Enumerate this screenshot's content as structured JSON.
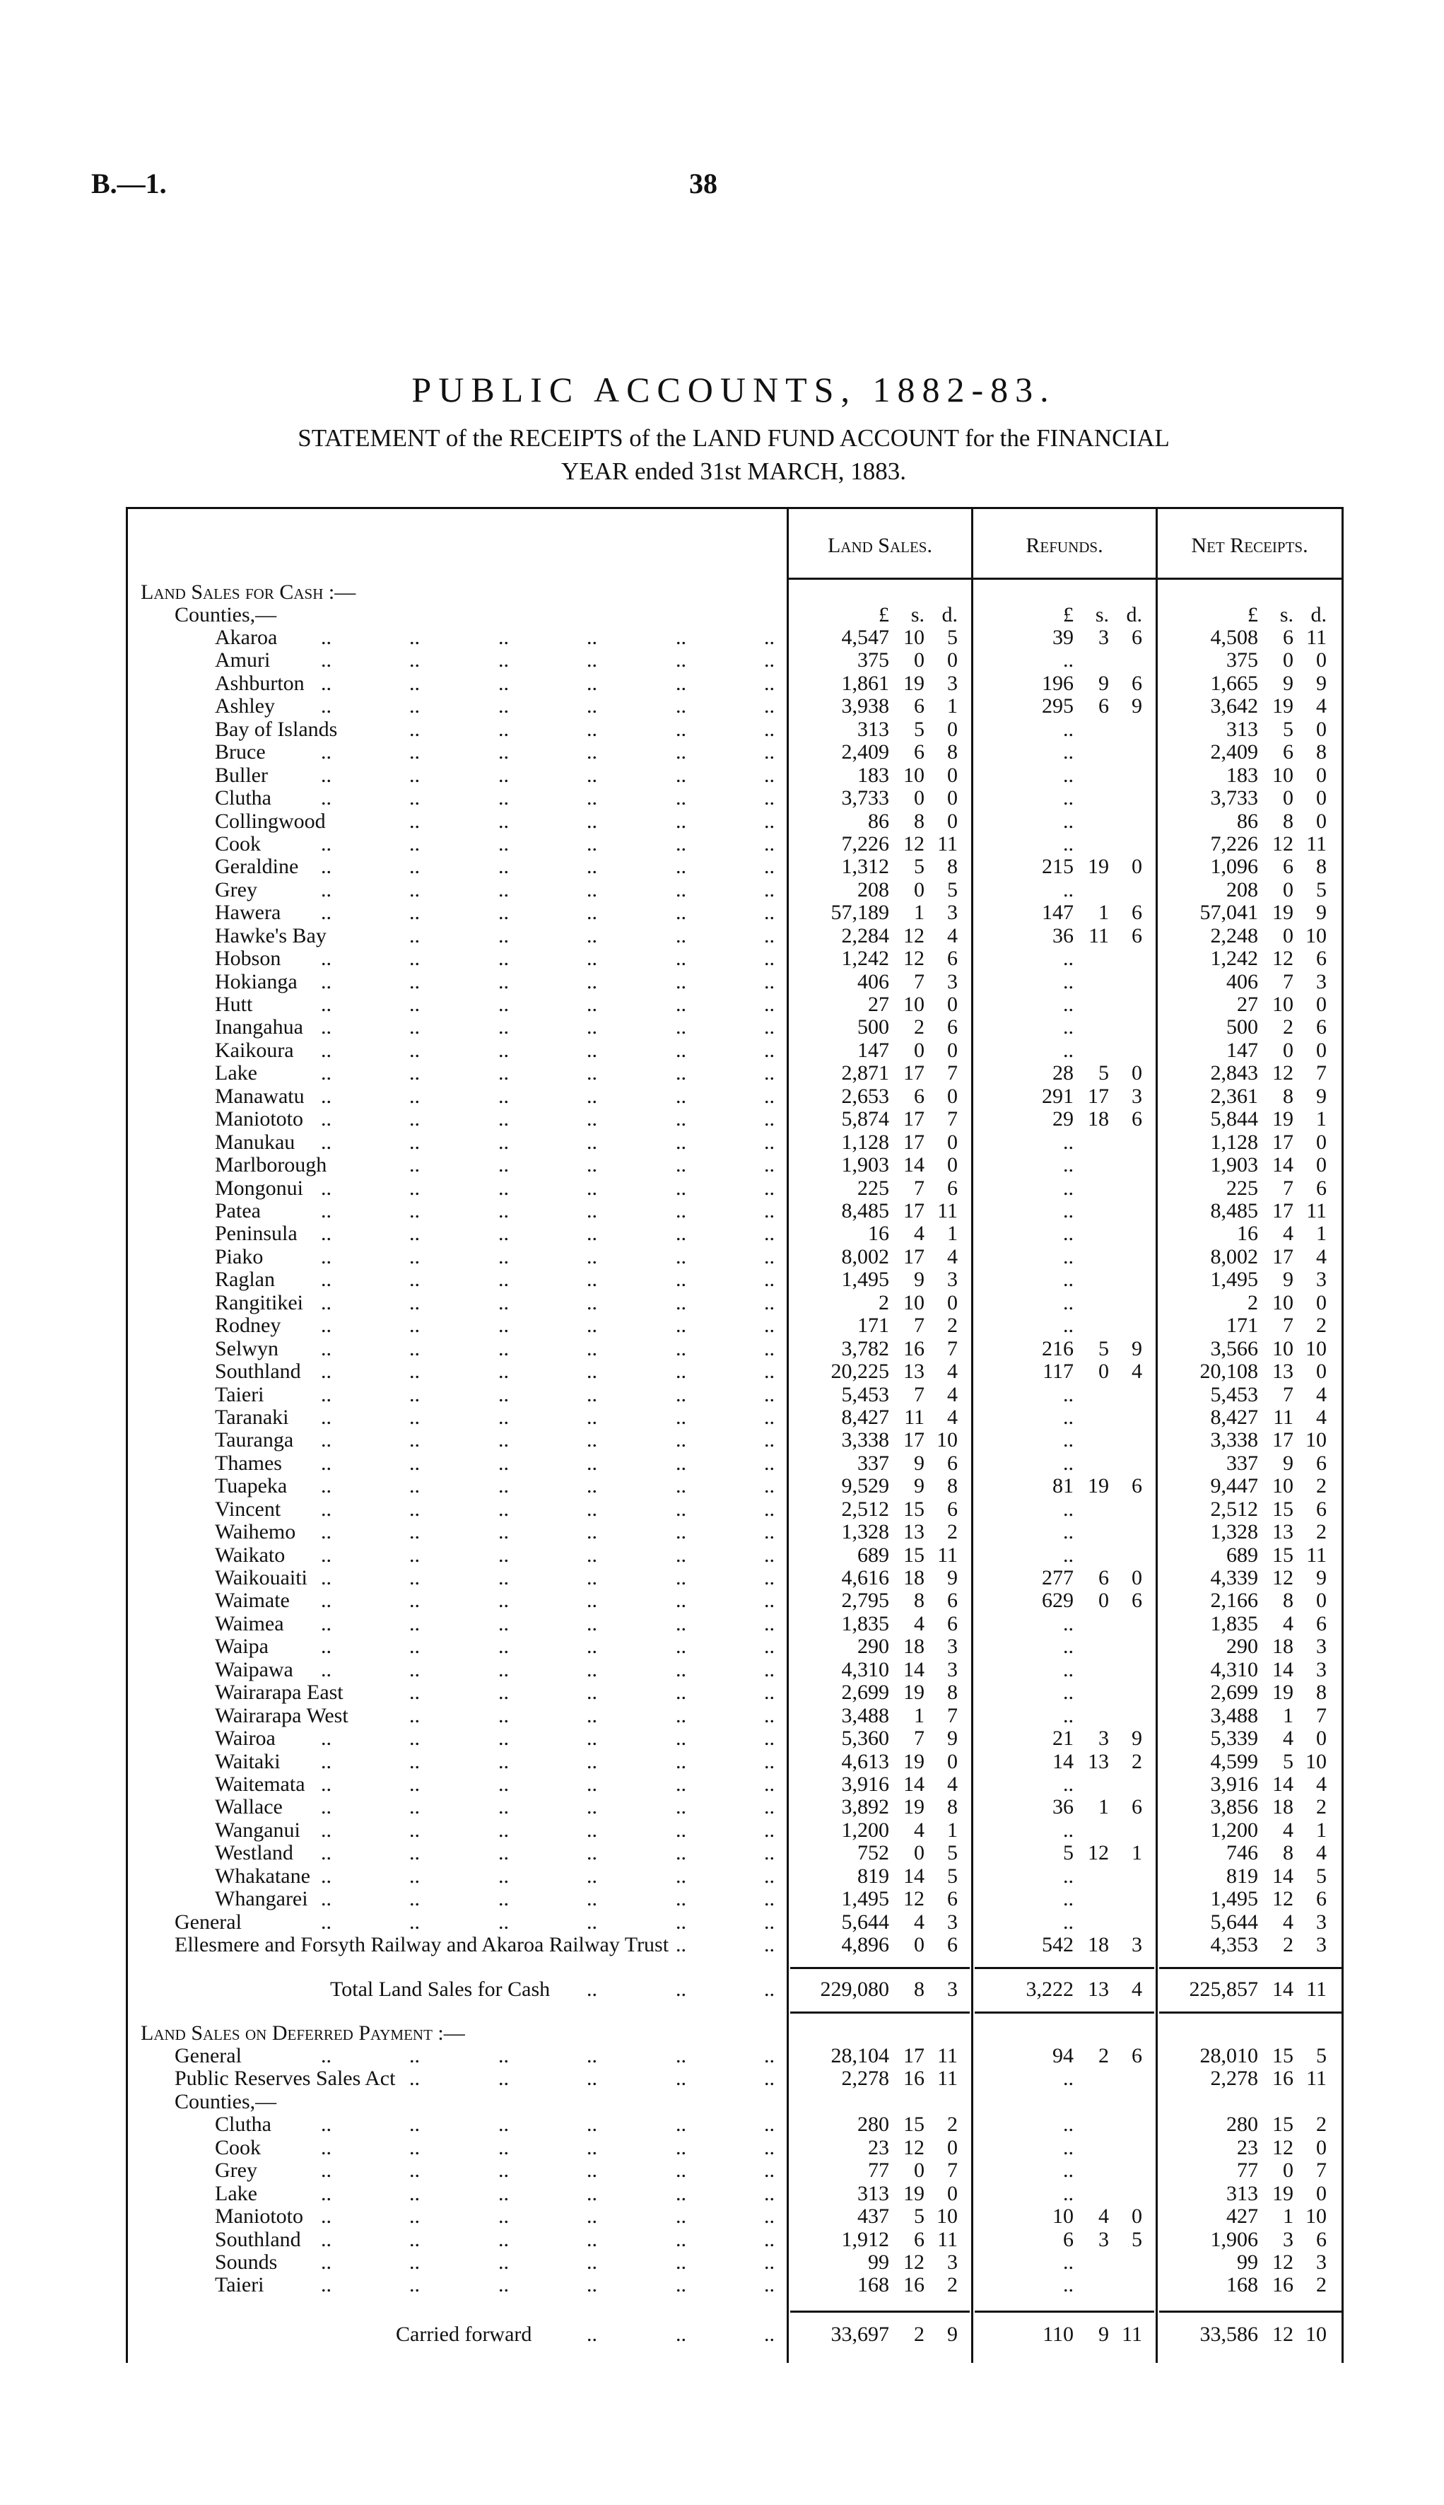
{
  "header": {
    "page_ref": "B.—1.",
    "page_number": "38",
    "title": "PUBLIC ACCOUNTS, 1882-83.",
    "statement_line1": "STATEMENT of the RECEIPTS of the LAND FUND ACCOUNT for the FINANCIAL",
    "statement_line2": "YEAR ended 31st MARCH, 1883."
  },
  "columns": {
    "land_sales": "Land Sales.",
    "refunds": "Refunds.",
    "net_receipts": "Net Receipts.",
    "units": [
      "£",
      "s.",
      "d."
    ]
  },
  "cash": {
    "heading": "Land Sales for Cash :—",
    "subheading": "Counties,—",
    "counties": [
      {
        "name": "Akaroa",
        "land": [
          "4,547",
          "10",
          "5"
        ],
        "refund": [
          "39",
          "3",
          "6"
        ],
        "net": [
          "4,508",
          "6",
          "11"
        ]
      },
      {
        "name": "Amuri",
        "land": [
          "375",
          "0",
          "0"
        ],
        "refund": [
          "..",
          "",
          ""
        ],
        "net": [
          "375",
          "0",
          "0"
        ]
      },
      {
        "name": "Ashburton",
        "land": [
          "1,861",
          "19",
          "3"
        ],
        "refund": [
          "196",
          "9",
          "6"
        ],
        "net": [
          "1,665",
          "9",
          "9"
        ]
      },
      {
        "name": "Ashley",
        "land": [
          "3,938",
          "6",
          "1"
        ],
        "refund": [
          "295",
          "6",
          "9"
        ],
        "net": [
          "3,642",
          "19",
          "4"
        ]
      },
      {
        "name": "Bay of Islands",
        "land": [
          "313",
          "5",
          "0"
        ],
        "refund": [
          "..",
          "",
          ""
        ],
        "net": [
          "313",
          "5",
          "0"
        ]
      },
      {
        "name": "Bruce",
        "land": [
          "2,409",
          "6",
          "8"
        ],
        "refund": [
          "..",
          "",
          ""
        ],
        "net": [
          "2,409",
          "6",
          "8"
        ]
      },
      {
        "name": "Buller",
        "land": [
          "183",
          "10",
          "0"
        ],
        "refund": [
          "..",
          "",
          ""
        ],
        "net": [
          "183",
          "10",
          "0"
        ]
      },
      {
        "name": "Clutha",
        "land": [
          "3,733",
          "0",
          "0"
        ],
        "refund": [
          "..",
          "",
          ""
        ],
        "net": [
          "3,733",
          "0",
          "0"
        ]
      },
      {
        "name": "Collingwood",
        "land": [
          "86",
          "8",
          "0"
        ],
        "refund": [
          "..",
          "",
          ""
        ],
        "net": [
          "86",
          "8",
          "0"
        ]
      },
      {
        "name": "Cook",
        "land": [
          "7,226",
          "12",
          "11"
        ],
        "refund": [
          "..",
          "",
          ""
        ],
        "net": [
          "7,226",
          "12",
          "11"
        ]
      },
      {
        "name": "Geraldine",
        "land": [
          "1,312",
          "5",
          "8"
        ],
        "refund": [
          "215",
          "19",
          "0"
        ],
        "net": [
          "1,096",
          "6",
          "8"
        ]
      },
      {
        "name": "Grey",
        "land": [
          "208",
          "0",
          "5"
        ],
        "refund": [
          "..",
          "",
          ""
        ],
        "net": [
          "208",
          "0",
          "5"
        ]
      },
      {
        "name": "Hawera",
        "land": [
          "57,189",
          "1",
          "3"
        ],
        "refund": [
          "147",
          "1",
          "6"
        ],
        "net": [
          "57,041",
          "19",
          "9"
        ]
      },
      {
        "name": "Hawke's Bay",
        "land": [
          "2,284",
          "12",
          "4"
        ],
        "refund": [
          "36",
          "11",
          "6"
        ],
        "net": [
          "2,248",
          "0",
          "10"
        ]
      },
      {
        "name": "Hobson",
        "land": [
          "1,242",
          "12",
          "6"
        ],
        "refund": [
          "..",
          "",
          ""
        ],
        "net": [
          "1,242",
          "12",
          "6"
        ]
      },
      {
        "name": "Hokianga",
        "land": [
          "406",
          "7",
          "3"
        ],
        "refund": [
          "..",
          "",
          ""
        ],
        "net": [
          "406",
          "7",
          "3"
        ]
      },
      {
        "name": "Hutt",
        "land": [
          "27",
          "10",
          "0"
        ],
        "refund": [
          "..",
          "",
          ""
        ],
        "net": [
          "27",
          "10",
          "0"
        ]
      },
      {
        "name": "Inangahua",
        "land": [
          "500",
          "2",
          "6"
        ],
        "refund": [
          "..",
          "",
          ""
        ],
        "net": [
          "500",
          "2",
          "6"
        ]
      },
      {
        "name": "Kaikoura",
        "land": [
          "147",
          "0",
          "0"
        ],
        "refund": [
          "..",
          "",
          ""
        ],
        "net": [
          "147",
          "0",
          "0"
        ]
      },
      {
        "name": "Lake",
        "land": [
          "2,871",
          "17",
          "7"
        ],
        "refund": [
          "28",
          "5",
          "0"
        ],
        "net": [
          "2,843",
          "12",
          "7"
        ]
      },
      {
        "name": "Manawatu",
        "land": [
          "2,653",
          "6",
          "0"
        ],
        "refund": [
          "291",
          "17",
          "3"
        ],
        "net": [
          "2,361",
          "8",
          "9"
        ]
      },
      {
        "name": "Maniototo",
        "land": [
          "5,874",
          "17",
          "7"
        ],
        "refund": [
          "29",
          "18",
          "6"
        ],
        "net": [
          "5,844",
          "19",
          "1"
        ]
      },
      {
        "name": "Manukau",
        "land": [
          "1,128",
          "17",
          "0"
        ],
        "refund": [
          "..",
          "",
          ""
        ],
        "net": [
          "1,128",
          "17",
          "0"
        ]
      },
      {
        "name": "Marlborough",
        "land": [
          "1,903",
          "14",
          "0"
        ],
        "refund": [
          "..",
          "",
          ""
        ],
        "net": [
          "1,903",
          "14",
          "0"
        ]
      },
      {
        "name": "Mongonui",
        "land": [
          "225",
          "7",
          "6"
        ],
        "refund": [
          "..",
          "",
          ""
        ],
        "net": [
          "225",
          "7",
          "6"
        ]
      },
      {
        "name": "Patea",
        "land": [
          "8,485",
          "17",
          "11"
        ],
        "refund": [
          "..",
          "",
          ""
        ],
        "net": [
          "8,485",
          "17",
          "11"
        ]
      },
      {
        "name": "Peninsula",
        "land": [
          "16",
          "4",
          "1"
        ],
        "refund": [
          "..",
          "",
          ""
        ],
        "net": [
          "16",
          "4",
          "1"
        ]
      },
      {
        "name": "Piako",
        "land": [
          "8,002",
          "17",
          "4"
        ],
        "refund": [
          "..",
          "",
          ""
        ],
        "net": [
          "8,002",
          "17",
          "4"
        ]
      },
      {
        "name": "Raglan",
        "land": [
          "1,495",
          "9",
          "3"
        ],
        "refund": [
          "..",
          "",
          ""
        ],
        "net": [
          "1,495",
          "9",
          "3"
        ]
      },
      {
        "name": "Rangitikei",
        "land": [
          "2",
          "10",
          "0"
        ],
        "refund": [
          "..",
          "",
          ""
        ],
        "net": [
          "2",
          "10",
          "0"
        ]
      },
      {
        "name": "Rodney",
        "land": [
          "171",
          "7",
          "2"
        ],
        "refund": [
          "..",
          "",
          ""
        ],
        "net": [
          "171",
          "7",
          "2"
        ]
      },
      {
        "name": "Selwyn",
        "land": [
          "3,782",
          "16",
          "7"
        ],
        "refund": [
          "216",
          "5",
          "9"
        ],
        "net": [
          "3,566",
          "10",
          "10"
        ]
      },
      {
        "name": "Southland",
        "land": [
          "20,225",
          "13",
          "4"
        ],
        "refund": [
          "117",
          "0",
          "4"
        ],
        "net": [
          "20,108",
          "13",
          "0"
        ]
      },
      {
        "name": "Taieri",
        "land": [
          "5,453",
          "7",
          "4"
        ],
        "refund": [
          "..",
          "",
          ""
        ],
        "net": [
          "5,453",
          "7",
          "4"
        ]
      },
      {
        "name": "Taranaki",
        "land": [
          "8,427",
          "11",
          "4"
        ],
        "refund": [
          "..",
          "",
          ""
        ],
        "net": [
          "8,427",
          "11",
          "4"
        ]
      },
      {
        "name": "Tauranga",
        "land": [
          "3,338",
          "17",
          "10"
        ],
        "refund": [
          "..",
          "",
          ""
        ],
        "net": [
          "3,338",
          "17",
          "10"
        ]
      },
      {
        "name": "Thames",
        "land": [
          "337",
          "9",
          "6"
        ],
        "refund": [
          "..",
          "",
          ""
        ],
        "net": [
          "337",
          "9",
          "6"
        ]
      },
      {
        "name": "Tuapeka",
        "land": [
          "9,529",
          "9",
          "8"
        ],
        "refund": [
          "81",
          "19",
          "6"
        ],
        "net": [
          "9,447",
          "10",
          "2"
        ]
      },
      {
        "name": "Vincent",
        "land": [
          "2,512",
          "15",
          "6"
        ],
        "refund": [
          "..",
          "",
          ""
        ],
        "net": [
          "2,512",
          "15",
          "6"
        ]
      },
      {
        "name": "Waihemo",
        "land": [
          "1,328",
          "13",
          "2"
        ],
        "refund": [
          "..",
          "",
          ""
        ],
        "net": [
          "1,328",
          "13",
          "2"
        ]
      },
      {
        "name": "Waikato",
        "land": [
          "689",
          "15",
          "11"
        ],
        "refund": [
          "..",
          "",
          ""
        ],
        "net": [
          "689",
          "15",
          "11"
        ]
      },
      {
        "name": "Waikouaiti",
        "land": [
          "4,616",
          "18",
          "9"
        ],
        "refund": [
          "277",
          "6",
          "0"
        ],
        "net": [
          "4,339",
          "12",
          "9"
        ]
      },
      {
        "name": "Waimate",
        "land": [
          "2,795",
          "8",
          "6"
        ],
        "refund": [
          "629",
          "0",
          "6"
        ],
        "net": [
          "2,166",
          "8",
          "0"
        ]
      },
      {
        "name": "Waimea",
        "land": [
          "1,835",
          "4",
          "6"
        ],
        "refund": [
          "..",
          "",
          ""
        ],
        "net": [
          "1,835",
          "4",
          "6"
        ]
      },
      {
        "name": "Waipa",
        "land": [
          "290",
          "18",
          "3"
        ],
        "refund": [
          "..",
          "",
          ""
        ],
        "net": [
          "290",
          "18",
          "3"
        ]
      },
      {
        "name": "Waipawa",
        "land": [
          "4,310",
          "14",
          "3"
        ],
        "refund": [
          "..",
          "",
          ""
        ],
        "net": [
          "4,310",
          "14",
          "3"
        ]
      },
      {
        "name": "Wairarapa East",
        "land": [
          "2,699",
          "19",
          "8"
        ],
        "refund": [
          "..",
          "",
          ""
        ],
        "net": [
          "2,699",
          "19",
          "8"
        ]
      },
      {
        "name": "Wairarapa West",
        "land": [
          "3,488",
          "1",
          "7"
        ],
        "refund": [
          "..",
          "",
          ""
        ],
        "net": [
          "3,488",
          "1",
          "7"
        ]
      },
      {
        "name": "Wairoa",
        "land": [
          "5,360",
          "7",
          "9"
        ],
        "refund": [
          "21",
          "3",
          "9"
        ],
        "net": [
          "5,339",
          "4",
          "0"
        ]
      },
      {
        "name": "Waitaki",
        "land": [
          "4,613",
          "19",
          "0"
        ],
        "refund": [
          "14",
          "13",
          "2"
        ],
        "net": [
          "4,599",
          "5",
          "10"
        ]
      },
      {
        "name": "Waitemata",
        "land": [
          "3,916",
          "14",
          "4"
        ],
        "refund": [
          "..",
          "",
          ""
        ],
        "net": [
          "3,916",
          "14",
          "4"
        ]
      },
      {
        "name": "Wallace",
        "land": [
          "3,892",
          "19",
          "8"
        ],
        "refund": [
          "36",
          "1",
          "6"
        ],
        "net": [
          "3,856",
          "18",
          "2"
        ]
      },
      {
        "name": "Wanganui",
        "land": [
          "1,200",
          "4",
          "1"
        ],
        "refund": [
          "..",
          "",
          ""
        ],
        "net": [
          "1,200",
          "4",
          "1"
        ]
      },
      {
        "name": "Westland",
        "land": [
          "752",
          "0",
          "5"
        ],
        "refund": [
          "5",
          "12",
          "1"
        ],
        "net": [
          "746",
          "8",
          "4"
        ]
      },
      {
        "name": "Whakatane",
        "land": [
          "819",
          "14",
          "5"
        ],
        "refund": [
          "..",
          "",
          ""
        ],
        "net": [
          "819",
          "14",
          "5"
        ]
      },
      {
        "name": "Whangarei",
        "land": [
          "1,495",
          "12",
          "6"
        ],
        "refund": [
          "..",
          "",
          ""
        ],
        "net": [
          "1,495",
          "12",
          "6"
        ]
      }
    ],
    "other": [
      {
        "name": "General",
        "land": [
          "5,644",
          "4",
          "3"
        ],
        "refund": [
          "..",
          "",
          ""
        ],
        "net": [
          "5,644",
          "4",
          "3"
        ]
      },
      {
        "name": "Ellesmere and Forsyth Railway and Akaroa Railway Trust",
        "land": [
          "4,896",
          "0",
          "6"
        ],
        "refund": [
          "542",
          "18",
          "3"
        ],
        "net": [
          "4,353",
          "2",
          "3"
        ]
      }
    ],
    "total": {
      "name": "Total Land Sales for Cash",
      "land": [
        "229,080",
        "8",
        "3"
      ],
      "refund": [
        "3,222",
        "13",
        "4"
      ],
      "net": [
        "225,857",
        "14",
        "11"
      ]
    }
  },
  "deferred": {
    "heading": "Land Sales on Deferred Payment :—",
    "other": [
      {
        "name": "General",
        "land": [
          "28,104",
          "17",
          "11"
        ],
        "refund": [
          "94",
          "2",
          "6"
        ],
        "net": [
          "28,010",
          "15",
          "5"
        ]
      },
      {
        "name": "Public Reserves Sales Act",
        "land": [
          "2,278",
          "16",
          "11"
        ],
        "refund": [
          "..",
          "",
          ""
        ],
        "net": [
          "2,278",
          "16",
          "11"
        ]
      }
    ],
    "subheading": "Counties,—",
    "counties": [
      {
        "name": "Clutha",
        "land": [
          "280",
          "15",
          "2"
        ],
        "refund": [
          "..",
          "",
          ""
        ],
        "net": [
          "280",
          "15",
          "2"
        ]
      },
      {
        "name": "Cook",
        "land": [
          "23",
          "12",
          "0"
        ],
        "refund": [
          "..",
          "",
          ""
        ],
        "net": [
          "23",
          "12",
          "0"
        ]
      },
      {
        "name": "Grey",
        "land": [
          "77",
          "0",
          "7"
        ],
        "refund": [
          "..",
          "",
          ""
        ],
        "net": [
          "77",
          "0",
          "7"
        ]
      },
      {
        "name": "Lake",
        "land": [
          "313",
          "19",
          "0"
        ],
        "refund": [
          "..",
          "",
          ""
        ],
        "net": [
          "313",
          "19",
          "0"
        ]
      },
      {
        "name": "Maniototo",
        "land": [
          "437",
          "5",
          "10"
        ],
        "refund": [
          "10",
          "4",
          "0"
        ],
        "net": [
          "427",
          "1",
          "10"
        ]
      },
      {
        "name": "Southland",
        "land": [
          "1,912",
          "6",
          "11"
        ],
        "refund": [
          "6",
          "3",
          "5"
        ],
        "net": [
          "1,906",
          "3",
          "6"
        ]
      },
      {
        "name": "Sounds",
        "land": [
          "99",
          "12",
          "3"
        ],
        "refund": [
          "..",
          "",
          ""
        ],
        "net": [
          "99",
          "12",
          "3"
        ]
      },
      {
        "name": "Taieri",
        "land": [
          "168",
          "16",
          "2"
        ],
        "refund": [
          "..",
          "",
          ""
        ],
        "net": [
          "168",
          "16",
          "2"
        ]
      }
    ],
    "carried_forward": {
      "name": "Carried forward",
      "land": [
        "33,697",
        "2",
        "9"
      ],
      "refund": [
        "110",
        "9",
        "11"
      ],
      "net": [
        "33,586",
        "12",
        "10"
      ]
    }
  }
}
